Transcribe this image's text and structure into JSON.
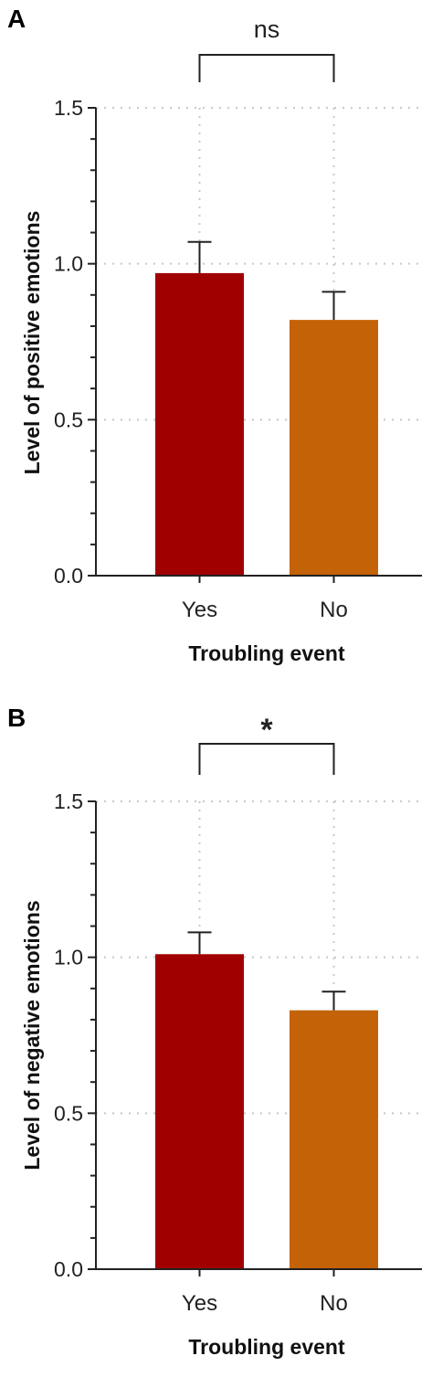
{
  "chart_data": [
    {
      "panel": "A",
      "type": "bar",
      "categories": [
        "Yes",
        "No"
      ],
      "values": [
        0.97,
        0.82
      ],
      "errors": [
        0.1,
        0.09
      ],
      "colors": [
        "#a10000",
        "#c46207"
      ],
      "xlabel": "Troubling event",
      "ylabel": "Level of positive emotions",
      "ylim": [
        0,
        1.5
      ],
      "yticks": [
        "0.0",
        "0.5",
        "1.0",
        "1.5"
      ],
      "yticks_values": [
        0,
        0.5,
        1.0,
        1.5
      ],
      "minor_tick_step": 0.1,
      "grid": "dotted",
      "significance": "ns"
    },
    {
      "panel": "B",
      "type": "bar",
      "categories": [
        "Yes",
        "No"
      ],
      "values": [
        1.01,
        0.83
      ],
      "errors": [
        0.07,
        0.06
      ],
      "colors": [
        "#a10000",
        "#c46207"
      ],
      "xlabel": "Troubling event",
      "ylabel": "Level of negative emotions",
      "ylim": [
        0,
        1.5
      ],
      "yticks": [
        "0.0",
        "0.5",
        "1.0",
        "1.5"
      ],
      "yticks_values": [
        0,
        0.5,
        1.0,
        1.5
      ],
      "minor_tick_step": 0.1,
      "grid": "dotted",
      "significance": "*"
    }
  ]
}
